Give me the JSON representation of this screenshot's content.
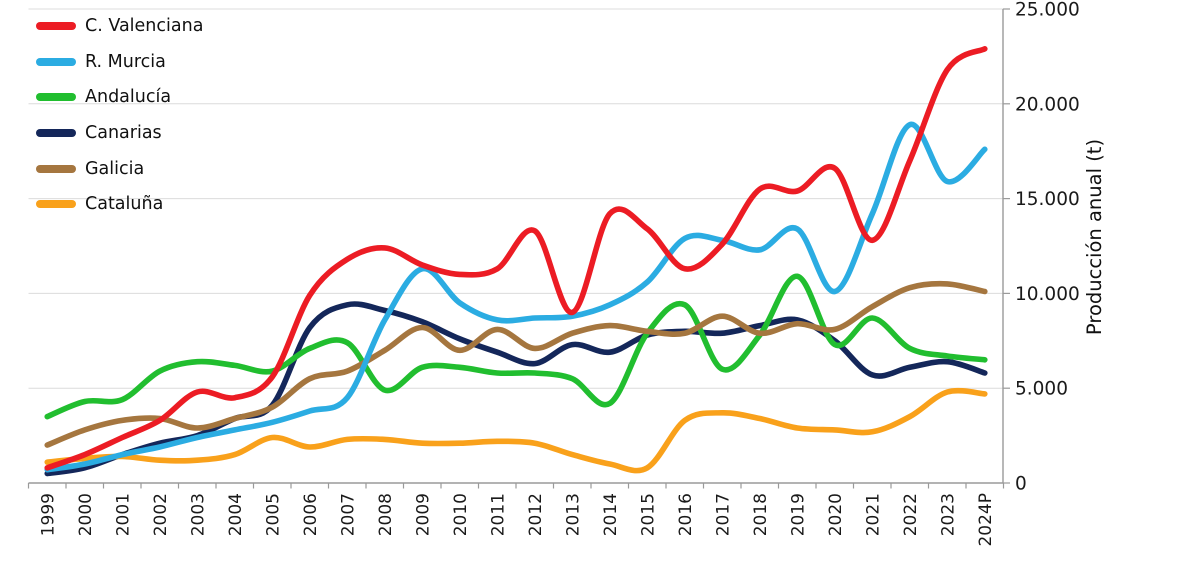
{
  "chart_data": {
    "type": "line",
    "title": "",
    "ylabel": "Producción anual (t)",
    "xlabel": "",
    "ylim": [
      0,
      25000
    ],
    "ytick_values": [
      0,
      5000,
      10000,
      15000,
      20000,
      25000
    ],
    "ytick_labels": [
      "0",
      "5.000",
      "10.000",
      "15.000",
      "20.000",
      "25.000"
    ],
    "grid": "horizontal",
    "legend_position": "top-left",
    "categories": [
      "1999",
      "2000",
      "2001",
      "2002",
      "2003",
      "2004",
      "2005",
      "2006",
      "2007",
      "2008",
      "2009",
      "2010",
      "2011",
      "2012",
      "2013",
      "2014",
      "2015",
      "2016",
      "2017",
      "2018",
      "2019",
      "2020",
      "2021",
      "2022",
      "2023",
      "2024P"
    ],
    "series": [
      {
        "name": "C. Valenciana",
        "color": "#ec1c24",
        "values": [
          800,
          1500,
          2400,
          3300,
          4800,
          4500,
          5600,
          9900,
          11800,
          12400,
          11500,
          11000,
          11300,
          13300,
          9000,
          14200,
          13400,
          11300,
          12600,
          15500,
          15400,
          16600,
          12800,
          17000,
          21800,
          22900
        ]
      },
      {
        "name": "R. Murcia",
        "color": "#2bace2",
        "values": [
          700,
          1000,
          1500,
          1900,
          2400,
          2800,
          3200,
          3800,
          4500,
          8600,
          11300,
          9500,
          8600,
          8700,
          8800,
          9400,
          10600,
          12900,
          12800,
          12300,
          13400,
          10100,
          14200,
          18900,
          15900,
          17600
        ]
      },
      {
        "name": "Andalucía",
        "color": "#21be2f",
        "values": [
          3500,
          4300,
          4400,
          5900,
          6400,
          6200,
          5900,
          7100,
          7400,
          4900,
          6100,
          6100,
          5800,
          5800,
          5500,
          4200,
          7900,
          9400,
          6000,
          7800,
          10900,
          7300,
          8700,
          7100,
          6700,
          6500
        ]
      },
      {
        "name": "Canarias",
        "color": "#14275a",
        "values": [
          500,
          800,
          1500,
          2100,
          2500,
          3400,
          4100,
          8200,
          9400,
          9100,
          8500,
          7600,
          6900,
          6300,
          7300,
          6900,
          7800,
          8000,
          7900,
          8300,
          8600,
          7500,
          5700,
          6100,
          6400,
          5800
        ]
      },
      {
        "name": "Galicia",
        "color": "#a5763f",
        "values": [
          2000,
          2800,
          3300,
          3400,
          2900,
          3400,
          4000,
          5500,
          5900,
          7000,
          8200,
          7000,
          8100,
          7100,
          7900,
          8300,
          8000,
          7900,
          8800,
          7900,
          8400,
          8100,
          9300,
          10300,
          10500,
          10100
        ]
      },
      {
        "name": "Cataluña",
        "color": "#f9a11b",
        "values": [
          1100,
          1300,
          1400,
          1200,
          1200,
          1500,
          2400,
          1900,
          2300,
          2300,
          2100,
          2100,
          2200,
          2100,
          1500,
          1000,
          800,
          3300,
          3700,
          3400,
          2900,
          2800,
          2700,
          3500,
          4800,
          4700
        ]
      }
    ]
  }
}
